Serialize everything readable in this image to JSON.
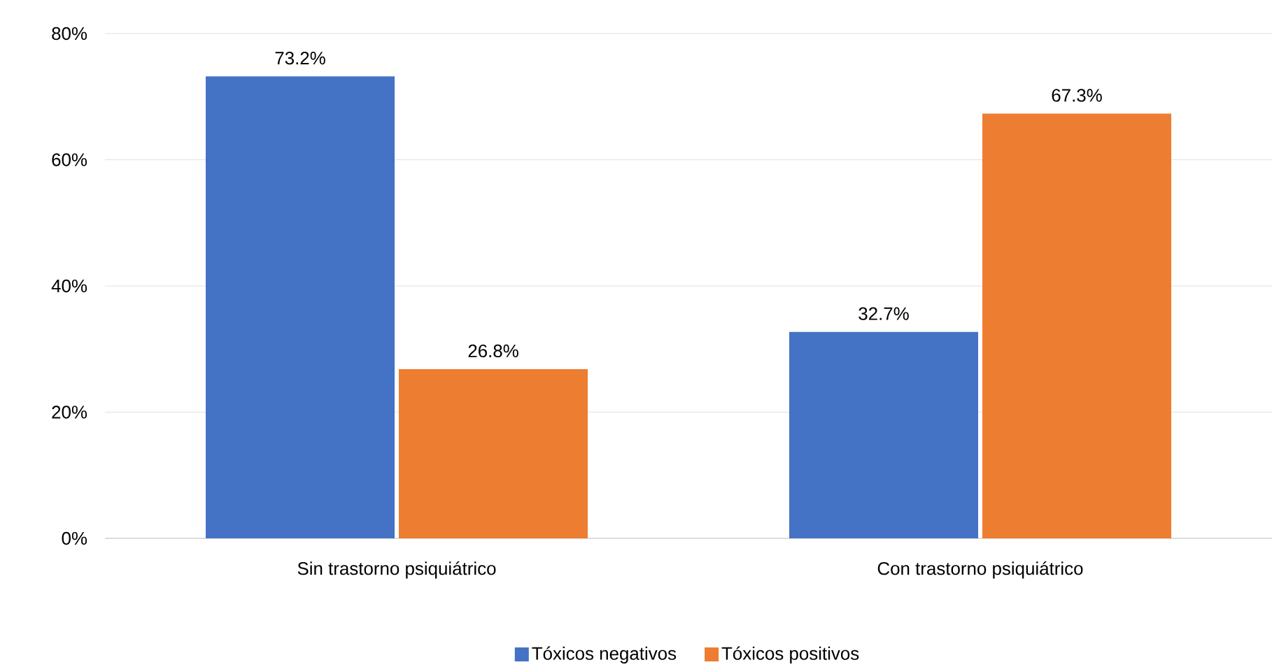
{
  "chart_data": {
    "type": "bar",
    "categories": [
      "Sin trastorno psiquiátrico",
      "Con trastorno psiquiátrico"
    ],
    "series": [
      {
        "name": "Tóxicos negativos",
        "color": "#4472c4",
        "values": [
          73.2,
          32.7
        ],
        "value_labels": [
          "73.2%",
          "32.7%"
        ]
      },
      {
        "name": "Tóxicos positivos",
        "color": "#ed7d31",
        "values": [
          26.8,
          67.3
        ],
        "value_labels": [
          "26.8%",
          "67.3%"
        ]
      }
    ],
    "ylim": [
      0,
      80
    ],
    "yticks": [
      {
        "value": 0,
        "label": "0%"
      },
      {
        "value": 20,
        "label": "20%"
      },
      {
        "value": 40,
        "label": "40%"
      },
      {
        "value": 60,
        "label": "60%"
      },
      {
        "value": 80,
        "label": "80%"
      }
    ],
    "grid": "y",
    "legend": "bottom"
  }
}
